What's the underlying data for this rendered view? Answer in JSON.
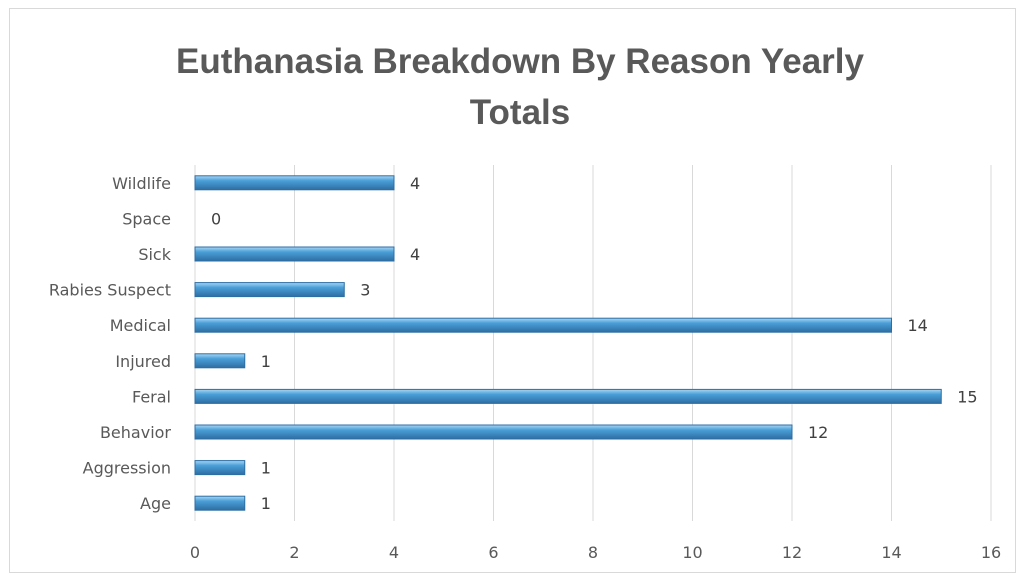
{
  "chart_data": {
    "type": "bar",
    "orientation": "horizontal",
    "title": "Euthanasia  Breakdown By Reason Yearly Totals",
    "title_lines": [
      "Euthanasia  Breakdown By Reason Yearly",
      "Totals"
    ],
    "categories": [
      "Age",
      "Aggression",
      "Behavior",
      "Feral",
      "Injured",
      "Medical",
      "Rabies Suspect",
      "Sick",
      "Space",
      "Wildlife"
    ],
    "values": [
      1,
      1,
      12,
      15,
      1,
      14,
      3,
      4,
      0,
      4
    ],
    "xlim": [
      0,
      16
    ],
    "x_ticks": [
      0,
      2,
      4,
      6,
      8,
      10,
      12,
      14,
      16
    ],
    "grid": "vertical",
    "data_labels": true,
    "legend": "none",
    "bar_color": "#4a9fd8",
    "bar_color_dark": "#2d6ea3",
    "bar_color_light": "#a9d6f5",
    "grid_color": "#d9d9d9",
    "text_color": "#595959"
  }
}
